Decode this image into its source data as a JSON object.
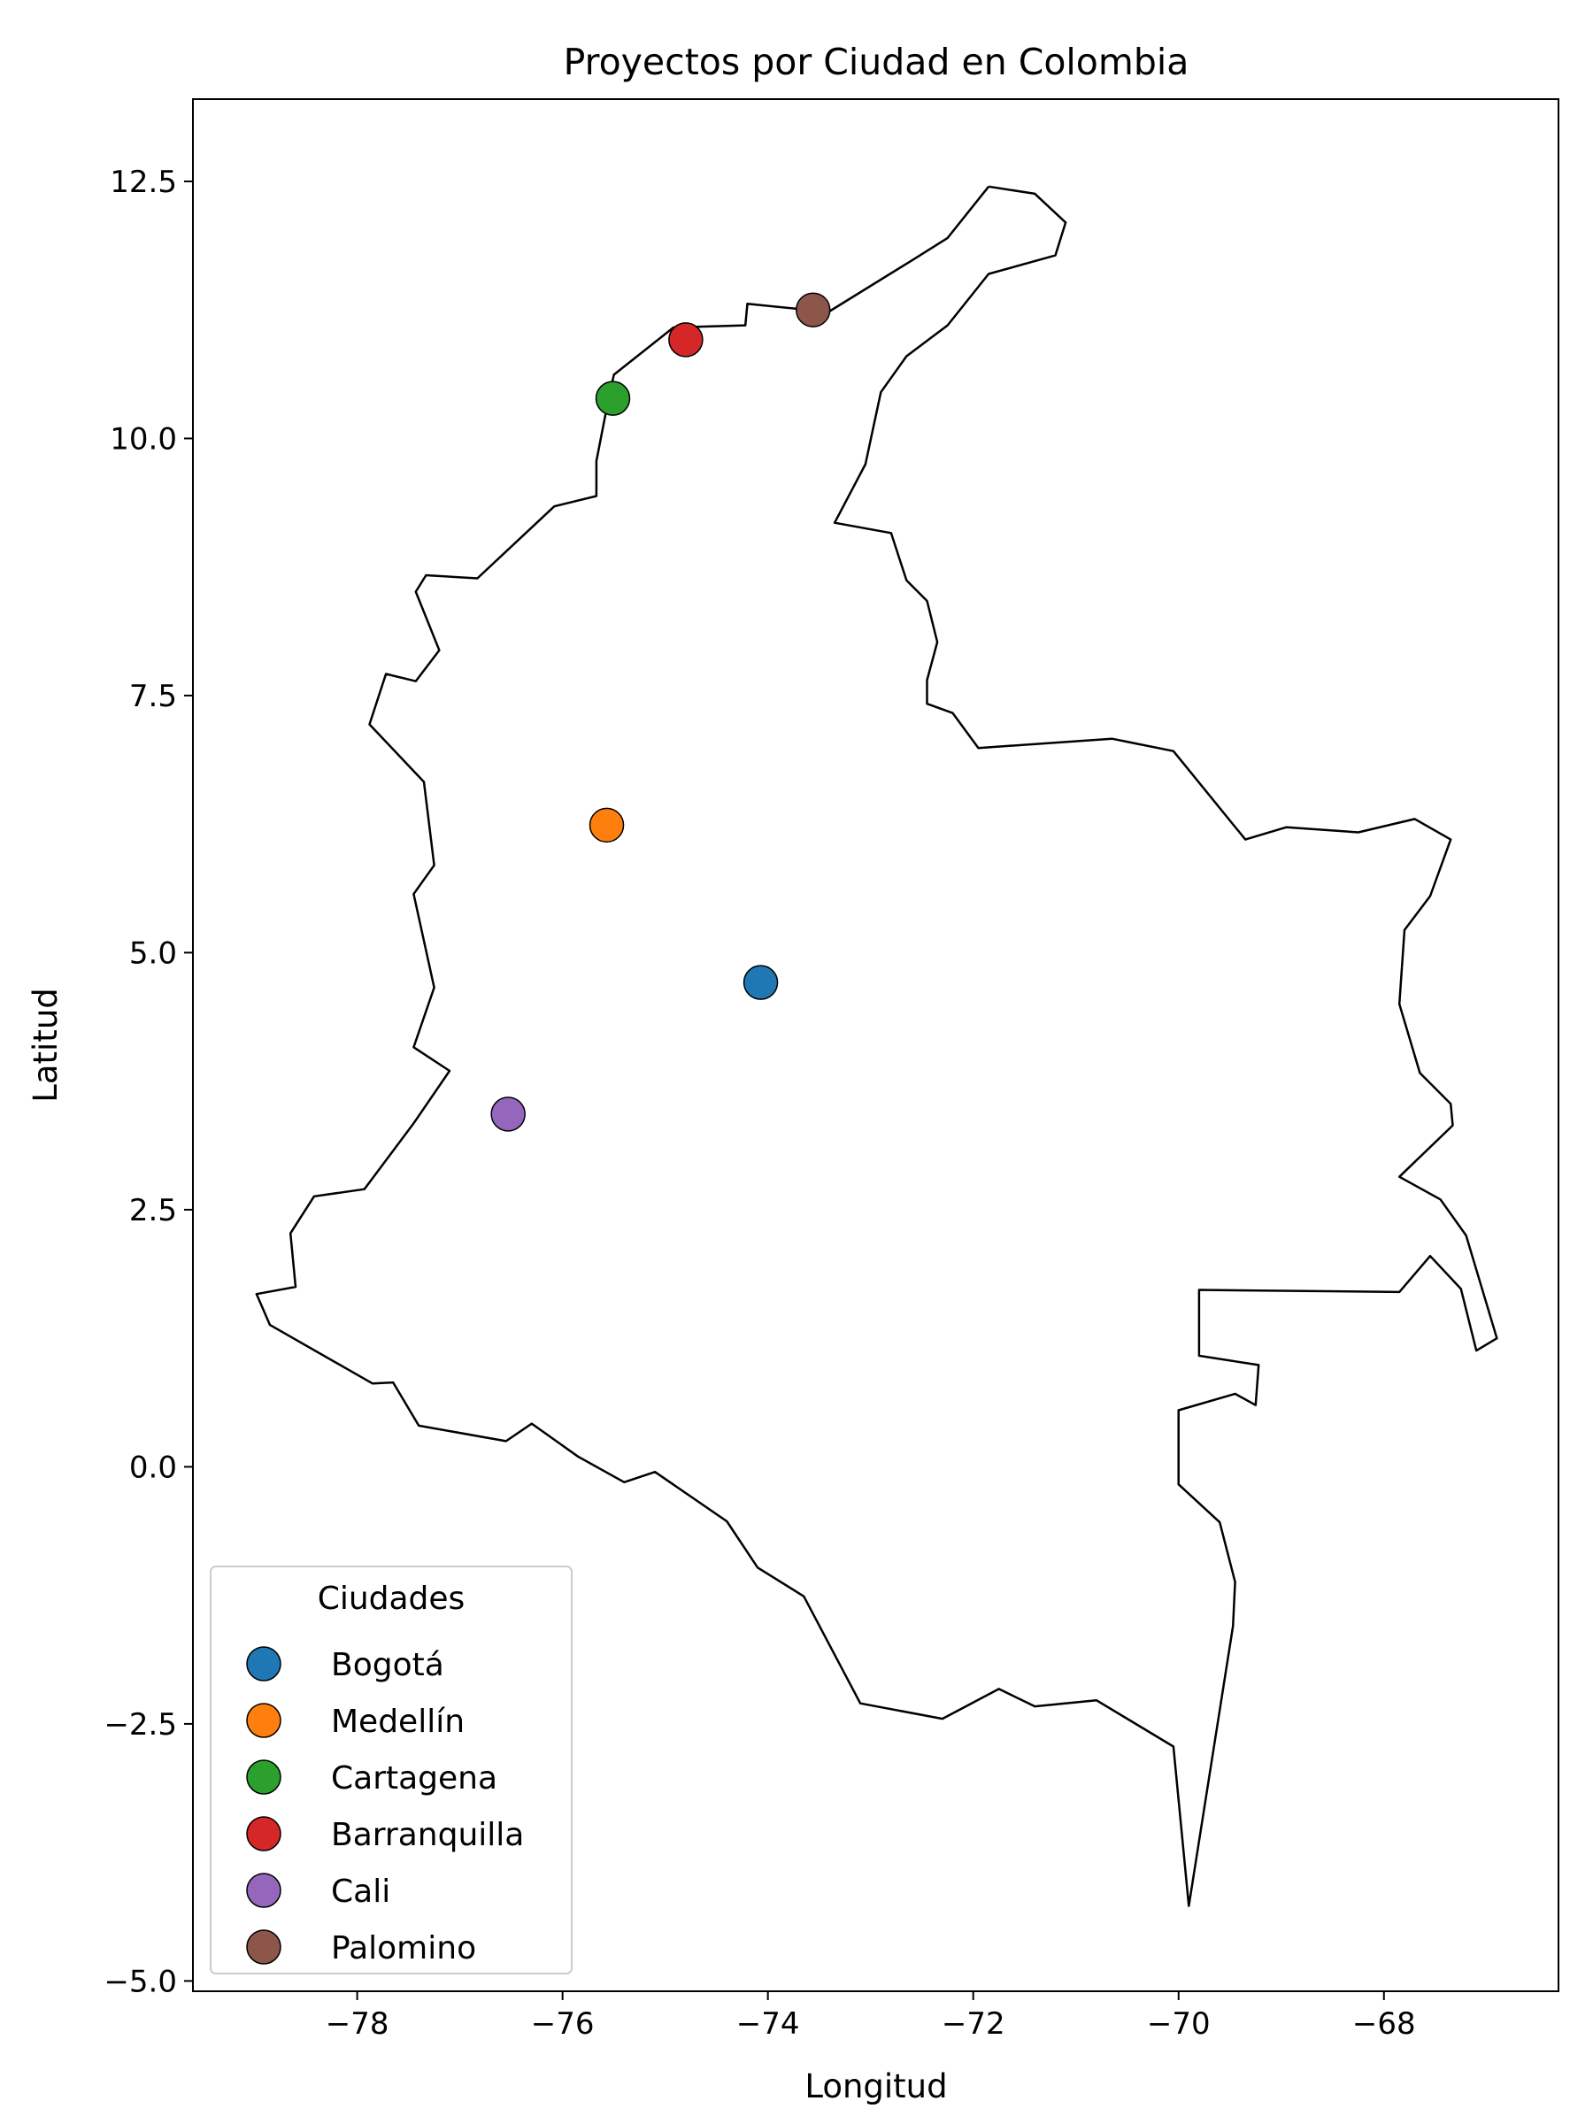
{
  "chart_data": {
    "type": "scatter",
    "title": "Proyectos por Ciudad en Colombia",
    "xlabel": "Longitud",
    "ylabel": "Latitud",
    "xlim": [
      -79.6,
      -66.3
    ],
    "ylim": [
      -5.1,
      13.3
    ],
    "xticks": [
      -78,
      -76,
      -74,
      -72,
      -70,
      -68
    ],
    "xtick_labels": [
      "−78",
      "−76",
      "−74",
      "−72",
      "−70",
      "−68"
    ],
    "yticks": [
      12.5,
      10.0,
      7.5,
      5.0,
      2.5,
      0.0,
      -2.5,
      -5.0
    ],
    "ytick_labels": [
      "12.5",
      "10.0",
      "7.5",
      "5.0",
      "2.5",
      "0.0",
      "−2.5",
      "−5.0"
    ],
    "grid": false,
    "legend": {
      "title": "Ciudades",
      "placement": "lower-left"
    },
    "series": [
      {
        "name": "Bogotá",
        "color": "#1f77b4",
        "x": [
          -74.07
        ],
        "y": [
          4.71
        ]
      },
      {
        "name": "Medellín",
        "color": "#ff7f0e",
        "x": [
          -75.57
        ],
        "y": [
          6.24
        ]
      },
      {
        "name": "Cartagena",
        "color": "#2ca02c",
        "x": [
          -75.51
        ],
        "y": [
          10.39
        ]
      },
      {
        "name": "Barranquilla",
        "color": "#d62728",
        "x": [
          -74.8
        ],
        "y": [
          10.96
        ]
      },
      {
        "name": "Cali",
        "color": "#9467bd",
        "x": [
          -76.53
        ],
        "y": [
          3.43
        ]
      },
      {
        "name": "Palomino",
        "color": "#8c564b",
        "x": [
          -73.56
        ],
        "y": [
          11.25
        ]
      }
    ],
    "outline": [
      [
        -71.85,
        12.45
      ],
      [
        -71.4,
        12.38
      ],
      [
        -71.1,
        12.1
      ],
      [
        -71.2,
        11.78
      ],
      [
        -71.85,
        11.6
      ],
      [
        -72.25,
        11.1
      ],
      [
        -72.65,
        10.8
      ],
      [
        -72.9,
        10.45
      ],
      [
        -73.05,
        9.75
      ],
      [
        -73.35,
        9.18
      ],
      [
        -72.8,
        9.08
      ],
      [
        -72.65,
        8.62
      ],
      [
        -72.45,
        8.42
      ],
      [
        -72.35,
        8.02
      ],
      [
        -72.45,
        7.65
      ],
      [
        -72.45,
        7.42
      ],
      [
        -72.2,
        7.33
      ],
      [
        -71.95,
        6.99
      ],
      [
        -70.65,
        7.08
      ],
      [
        -70.05,
        6.96
      ],
      [
        -69.35,
        6.1
      ],
      [
        -68.95,
        6.22
      ],
      [
        -68.25,
        6.17
      ],
      [
        -67.7,
        6.3
      ],
      [
        -67.35,
        6.1
      ],
      [
        -67.55,
        5.55
      ],
      [
        -67.8,
        5.22
      ],
      [
        -67.85,
        4.5
      ],
      [
        -67.65,
        3.83
      ],
      [
        -67.35,
        3.53
      ],
      [
        -67.33,
        3.32
      ],
      [
        -67.85,
        2.82
      ],
      [
        -67.45,
        2.6
      ],
      [
        -67.2,
        2.25
      ],
      [
        -66.9,
        1.25
      ],
      [
        -67.1,
        1.13
      ],
      [
        -67.25,
        1.73
      ],
      [
        -67.55,
        2.05
      ],
      [
        -67.85,
        1.7
      ],
      [
        -69.8,
        1.72
      ],
      [
        -69.8,
        1.08
      ],
      [
        -69.22,
        0.99
      ],
      [
        -69.25,
        0.6
      ],
      [
        -69.45,
        0.71
      ],
      [
        -70.0,
        0.55
      ],
      [
        -70.0,
        -0.17
      ],
      [
        -69.6,
        -0.54
      ],
      [
        -69.45,
        -1.12
      ],
      [
        -69.47,
        -1.55
      ],
      [
        -69.9,
        -4.27
      ],
      [
        -70.05,
        -2.72
      ],
      [
        -70.8,
        -2.27
      ],
      [
        -71.4,
        -2.33
      ],
      [
        -71.75,
        -2.16
      ],
      [
        -72.3,
        -2.45
      ],
      [
        -73.1,
        -2.3
      ],
      [
        -73.65,
        -1.26
      ],
      [
        -74.1,
        -0.98
      ],
      [
        -74.4,
        -0.53
      ],
      [
        -75.1,
        -0.05
      ],
      [
        -75.4,
        -0.15
      ],
      [
        -75.85,
        0.1
      ],
      [
        -76.3,
        0.42
      ],
      [
        -76.55,
        0.25
      ],
      [
        -77.4,
        0.4
      ],
      [
        -77.65,
        0.82
      ],
      [
        -77.85,
        0.81
      ],
      [
        -78.85,
        1.38
      ],
      [
        -78.98,
        1.68
      ],
      [
        -78.6,
        1.75
      ],
      [
        -78.65,
        2.27
      ],
      [
        -78.42,
        2.63
      ],
      [
        -77.93,
        2.7
      ],
      [
        -77.45,
        3.34
      ],
      [
        -77.1,
        3.85
      ],
      [
        -77.45,
        4.08
      ],
      [
        -77.25,
        4.66
      ],
      [
        -77.45,
        5.57
      ],
      [
        -77.25,
        5.85
      ],
      [
        -77.35,
        6.66
      ],
      [
        -77.88,
        7.22
      ],
      [
        -77.72,
        7.71
      ],
      [
        -77.43,
        7.64
      ],
      [
        -77.2,
        7.94
      ],
      [
        -77.43,
        8.51
      ],
      [
        -77.33,
        8.67
      ],
      [
        -76.83,
        8.64
      ],
      [
        -76.08,
        9.34
      ],
      [
        -75.67,
        9.44
      ],
      [
        -75.67,
        9.78
      ],
      [
        -75.55,
        10.4
      ],
      [
        -75.5,
        10.62
      ],
      [
        -74.92,
        11.08
      ],
      [
        -74.22,
        11.1
      ],
      [
        -74.2,
        11.31
      ],
      [
        -73.41,
        11.23
      ],
      [
        -72.6,
        11.73
      ],
      [
        -72.25,
        11.95
      ],
      [
        -71.85,
        12.45
      ]
    ]
  }
}
